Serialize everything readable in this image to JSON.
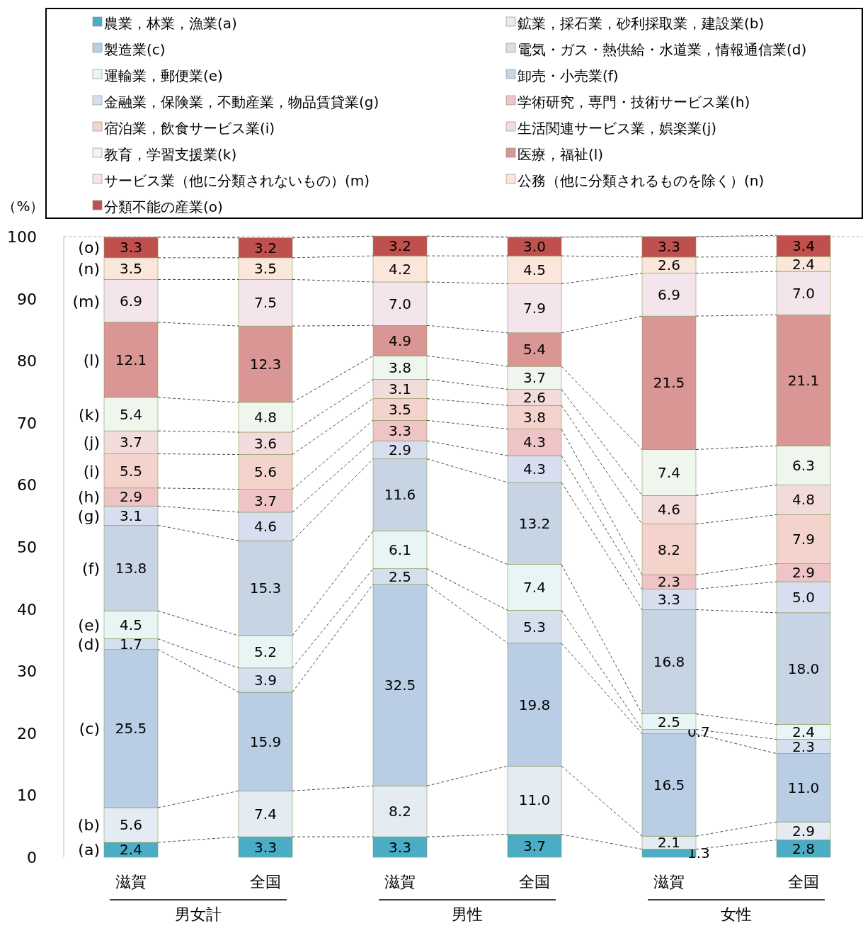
{
  "chart_data": {
    "type": "bar",
    "stacked": true,
    "ylabel": "（%）",
    "legend": "top",
    "categories": [
      "滋賀",
      "全国",
      "滋賀",
      "全国",
      "滋賀",
      "全国"
    ],
    "ylim": [
      0,
      100
    ],
    "yticks": [
      0,
      10,
      20,
      30,
      40,
      50,
      60,
      70,
      80,
      90,
      100
    ],
    "series": [
      {
        "name": "農業，林業，漁業(a)",
        "color": "#4bacc6",
        "values": [
          2.4,
          3.3,
          3.3,
          3.7,
          1.3,
          2.8
        ],
        "value_labels": [
          "2.4",
          "3.3",
          "3.3",
          "3.7",
          "1.3",
          "2.8"
        ]
      },
      {
        "name": "鉱業，採石業，砂利採取業，建設業(b)",
        "color": "#e4ebf3",
        "values": [
          5.6,
          7.4,
          8.2,
          11.0,
          2.1,
          2.9
        ],
        "value_labels": [
          "5.6",
          "7.4",
          "8.2",
          "11.0",
          "2.1",
          "2.9"
        ]
      },
      {
        "name": "製造業(c)",
        "color": "#b9cde5",
        "values": [
          25.5,
          15.9,
          32.5,
          19.8,
          16.5,
          11.0
        ],
        "value_labels": [
          "25.5",
          "15.9",
          "32.5",
          "19.8",
          "16.5",
          "11.0"
        ]
      },
      {
        "name": "電気・ガス・熱供給・水道業，情報通信業(d)",
        "color": "#d5e0ee",
        "values": [
          1.7,
          3.9,
          2.5,
          5.3,
          0.7,
          2.3
        ],
        "value_labels": [
          "1.7",
          "3.9",
          "2.5",
          "5.3",
          "0.7",
          "2.3"
        ]
      },
      {
        "name": "運輸業，郵便業(e)",
        "color": "#e8f5f5",
        "values": [
          4.5,
          5.2,
          6.1,
          7.4,
          2.5,
          2.4
        ],
        "value_labels": [
          "4.5",
          "5.2",
          "6.1",
          "7.4",
          "2.5",
          "2.4"
        ]
      },
      {
        "name": "卸売・小売業(f)",
        "color": "#c6d4e4",
        "values": [
          13.8,
          15.3,
          11.6,
          13.2,
          16.8,
          18.0
        ],
        "value_labels": [
          "13.8",
          "15.3",
          "11.6",
          "13.2",
          "16.8",
          "18.0"
        ]
      },
      {
        "name": "金融業，保険業，不動産業，物品賃貸業(g)",
        "color": "#d6def0",
        "values": [
          3.1,
          4.6,
          2.9,
          4.3,
          3.3,
          5.0
        ],
        "value_labels": [
          "3.1",
          "4.6",
          "2.9",
          "4.3",
          "3.3",
          "5.0"
        ]
      },
      {
        "name": "学術研究，専門・技術サービス業(h)",
        "color": "#efc4c6",
        "values": [
          2.9,
          3.7,
          3.3,
          4.3,
          2.3,
          2.9
        ],
        "value_labels": [
          "2.9",
          "3.7",
          "3.3",
          "4.3",
          "2.3",
          "2.9"
        ]
      },
      {
        "name": "宿泊業，飲食サービス業(i)",
        "color": "#f4d3cd",
        "values": [
          5.5,
          5.6,
          3.5,
          3.8,
          8.2,
          7.9
        ],
        "value_labels": [
          "5.5",
          "5.6",
          "3.5",
          "3.8",
          "8.2",
          "7.9"
        ]
      },
      {
        "name": "生活関連サービス業，娯楽業(j)",
        "color": "#f2dcdb",
        "values": [
          3.7,
          3.6,
          3.1,
          2.6,
          4.6,
          4.8
        ],
        "value_labels": [
          "3.7",
          "3.6",
          "3.1",
          "2.6",
          "4.6",
          "4.8"
        ]
      },
      {
        "name": "教育，学習支援業(k)",
        "color": "#eef6ee",
        "values": [
          5.4,
          4.8,
          3.8,
          3.7,
          7.4,
          6.3
        ],
        "value_labels": [
          "5.4",
          "4.8",
          "3.8",
          "3.7",
          "7.4",
          "6.3"
        ]
      },
      {
        "name": "医療，福祉(l)",
        "color": "#d99694",
        "values": [
          12.1,
          12.3,
          4.9,
          5.4,
          21.5,
          21.1
        ],
        "value_labels": [
          "12.1",
          "12.3",
          "4.9",
          "5.4",
          "21.5",
          "21.1"
        ]
      },
      {
        "name": "サービス業（他に分類されないもの）(m)",
        "color": "#f4e4ec",
        "values": [
          6.9,
          7.5,
          7.0,
          7.9,
          6.9,
          7.0
        ],
        "value_labels": [
          "6.9",
          "7.5",
          "7.0",
          "7.9",
          "6.9",
          "7.0"
        ]
      },
      {
        "name": "公務（他に分類されるものを除く）(n)",
        "color": "#fbe6dc",
        "values": [
          3.5,
          3.5,
          4.2,
          4.5,
          2.6,
          2.4
        ],
        "value_labels": [
          "3.5",
          "3.5",
          "4.2",
          "4.5",
          "2.6",
          "2.4"
        ]
      },
      {
        "name": "分類不能の産業(o)",
        "color": "#c0504d",
        "values": [
          3.3,
          3.2,
          3.2,
          3.0,
          3.3,
          3.4
        ],
        "value_labels": [
          "3.3",
          "3.2",
          "3.2",
          "3.0",
          "3.3",
          "3.4"
        ]
      }
    ],
    "annotations": [
      "男女計",
      "男性",
      "女性",
      "(a)",
      "(b)",
      "(c)",
      "(d)",
      "(e)",
      "(f)",
      "(g)",
      "(h)",
      "(i)",
      "(j)",
      "(k)",
      "(l)",
      "(m)",
      "(n)",
      "(o)"
    ]
  }
}
